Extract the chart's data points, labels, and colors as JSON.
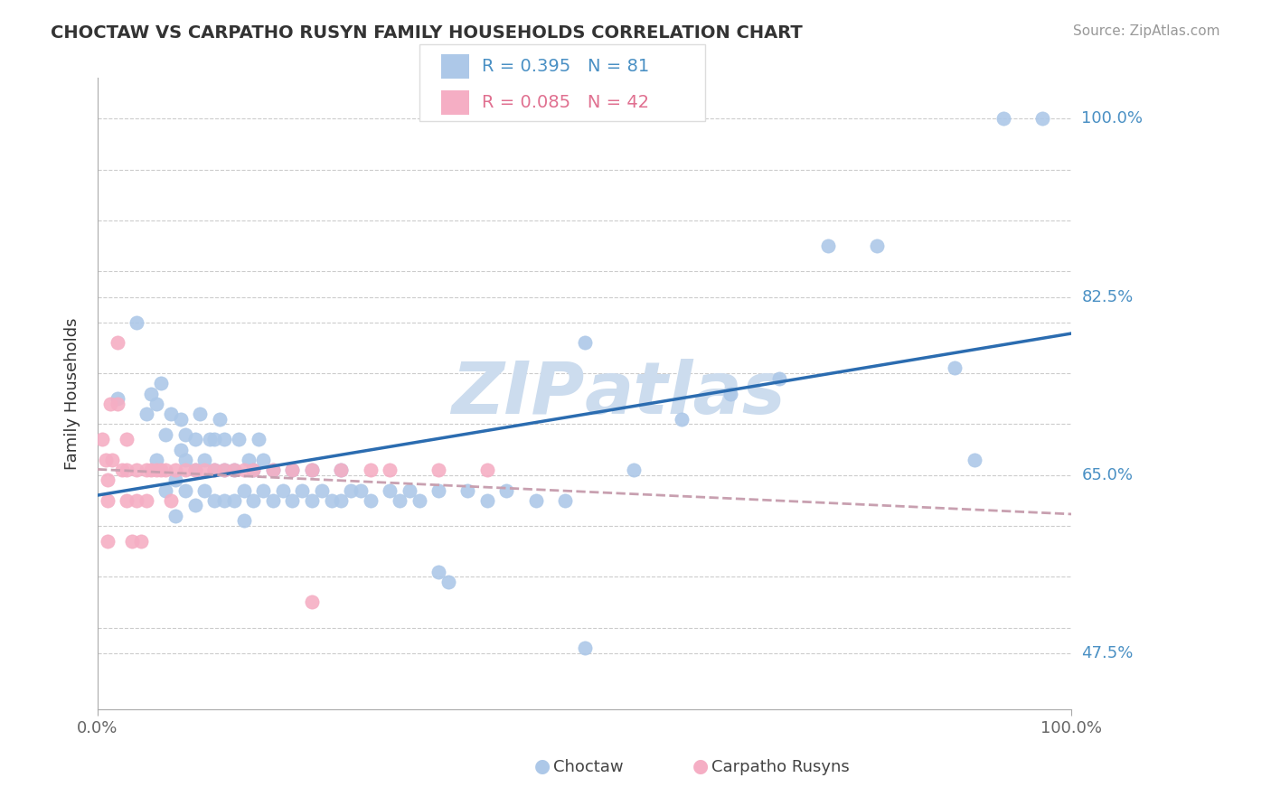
{
  "title": "CHOCTAW VS CARPATHO RUSYN FAMILY HOUSEHOLDS CORRELATION CHART",
  "source_text": "Source: ZipAtlas.com",
  "ylabel": "Family Households",
  "xlim": [
    0.0,
    1.0
  ],
  "ylim": [
    0.42,
    1.04
  ],
  "choctaw_R": 0.395,
  "choctaw_N": 81,
  "carpatho_R": 0.085,
  "carpatho_N": 42,
  "choctaw_color": "#adc8e8",
  "carpatho_color": "#f5aec4",
  "choctaw_line_color": "#2b6cb0",
  "carpatho_line_color": "#e87090",
  "carpatho_dash_color": "#c8a0b0",
  "grid_color": "#cccccc",
  "watermark_color": "#ccdcee",
  "ytick_labeled": {
    "0.475": "47.5%",
    "0.65": "65.0%",
    "0.825": "82.5%",
    "1.00": "100.0%"
  },
  "ytick_all": [
    0.475,
    0.5,
    0.55,
    0.6,
    0.65,
    0.7,
    0.75,
    0.8,
    0.825,
    0.85,
    0.9,
    0.95,
    1.0
  ],
  "choctaw_x": [
    0.02,
    0.04,
    0.05,
    0.055,
    0.06,
    0.06,
    0.065,
    0.07,
    0.07,
    0.075,
    0.08,
    0.08,
    0.085,
    0.085,
    0.09,
    0.09,
    0.09,
    0.1,
    0.1,
    0.1,
    0.105,
    0.11,
    0.11,
    0.115,
    0.12,
    0.12,
    0.12,
    0.125,
    0.13,
    0.13,
    0.13,
    0.14,
    0.14,
    0.145,
    0.15,
    0.15,
    0.155,
    0.16,
    0.16,
    0.165,
    0.17,
    0.17,
    0.18,
    0.18,
    0.19,
    0.2,
    0.2,
    0.21,
    0.22,
    0.22,
    0.23,
    0.24,
    0.25,
    0.25,
    0.26,
    0.27,
    0.28,
    0.3,
    0.31,
    0.32,
    0.33,
    0.35,
    0.38,
    0.4,
    0.42,
    0.45,
    0.5,
    0.55,
    0.6,
    0.65,
    0.7,
    0.75,
    0.8,
    0.88,
    0.9,
    0.93,
    0.97,
    0.5,
    0.36,
    0.48,
    0.35
  ],
  "choctaw_y": [
    0.725,
    0.8,
    0.71,
    0.73,
    0.665,
    0.72,
    0.74,
    0.635,
    0.69,
    0.71,
    0.61,
    0.645,
    0.675,
    0.705,
    0.635,
    0.665,
    0.69,
    0.62,
    0.655,
    0.685,
    0.71,
    0.635,
    0.665,
    0.685,
    0.625,
    0.655,
    0.685,
    0.705,
    0.625,
    0.655,
    0.685,
    0.625,
    0.655,
    0.685,
    0.605,
    0.635,
    0.665,
    0.625,
    0.655,
    0.685,
    0.635,
    0.665,
    0.625,
    0.655,
    0.635,
    0.625,
    0.655,
    0.635,
    0.625,
    0.655,
    0.635,
    0.625,
    0.625,
    0.655,
    0.635,
    0.635,
    0.625,
    0.635,
    0.625,
    0.635,
    0.625,
    0.635,
    0.635,
    0.625,
    0.635,
    0.625,
    0.48,
    0.655,
    0.705,
    0.73,
    0.745,
    0.875,
    0.875,
    0.755,
    0.665,
    1.0,
    1.0,
    0.78,
    0.545,
    0.625,
    0.555
  ],
  "carpatho_x": [
    0.005,
    0.008,
    0.01,
    0.01,
    0.01,
    0.013,
    0.015,
    0.02,
    0.02,
    0.025,
    0.03,
    0.03,
    0.03,
    0.035,
    0.04,
    0.04,
    0.045,
    0.05,
    0.05,
    0.055,
    0.06,
    0.065,
    0.07,
    0.075,
    0.08,
    0.09,
    0.1,
    0.11,
    0.12,
    0.13,
    0.14,
    0.15,
    0.16,
    0.18,
    0.2,
    0.22,
    0.25,
    0.28,
    0.3,
    0.35,
    0.4,
    0.22
  ],
  "carpatho_y": [
    0.685,
    0.665,
    0.625,
    0.585,
    0.645,
    0.72,
    0.665,
    0.78,
    0.72,
    0.655,
    0.685,
    0.655,
    0.625,
    0.585,
    0.655,
    0.625,
    0.585,
    0.655,
    0.625,
    0.655,
    0.655,
    0.655,
    0.655,
    0.625,
    0.655,
    0.655,
    0.655,
    0.655,
    0.655,
    0.655,
    0.655,
    0.655,
    0.655,
    0.655,
    0.655,
    0.655,
    0.655,
    0.655,
    0.655,
    0.655,
    0.655,
    0.525
  ]
}
